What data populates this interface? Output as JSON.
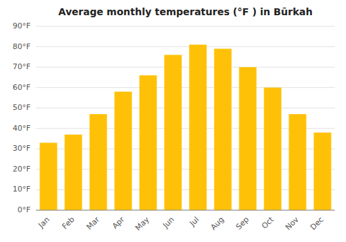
{
  "chart_data": {
    "type": "bar",
    "title": "Average monthly temperatures (°F ) in Būrkah",
    "categories": [
      "Jan",
      "Feb",
      "Mar",
      "Apr",
      "May",
      "Jun",
      "Jul",
      "Aug",
      "Sep",
      "Oct",
      "Nov",
      "Dec"
    ],
    "values": [
      33,
      37,
      47,
      58,
      66,
      76,
      81,
      79,
      70,
      60,
      47,
      38
    ],
    "color": "#FFC107",
    "ylim": [
      0,
      90
    ],
    "yticks": [
      {
        "value": 0,
        "label": "0°F"
      },
      {
        "value": 10,
        "label": "10°F"
      },
      {
        "value": 20,
        "label": "20°F"
      },
      {
        "value": 30,
        "label": "30°F"
      },
      {
        "value": 40,
        "label": "40°F"
      },
      {
        "value": 50,
        "label": "50°F"
      },
      {
        "value": 60,
        "label": "60°F"
      },
      {
        "value": 70,
        "label": "70°F"
      },
      {
        "value": 80,
        "label": "80°F"
      },
      {
        "value": 90,
        "label": "90°F"
      }
    ],
    "grid": true
  }
}
